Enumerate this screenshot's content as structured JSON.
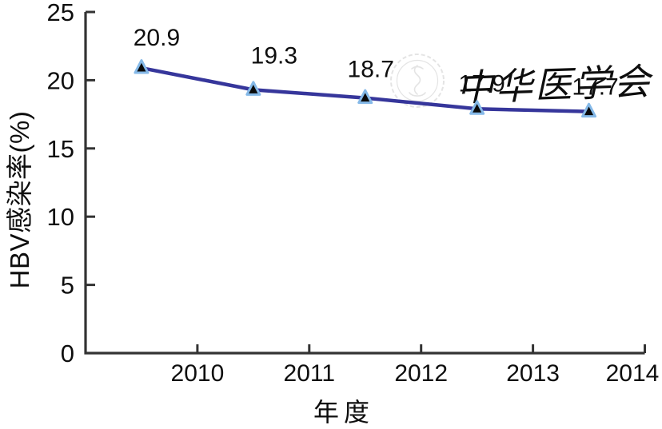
{
  "chart_data": {
    "type": "line",
    "title": "",
    "xlabel": "年度",
    "ylabel": "HBV感染率(%)",
    "x": [
      2009.5,
      2010.5,
      2011.5,
      2012.5,
      2013.5
    ],
    "values": [
      20.9,
      19.3,
      18.7,
      17.9,
      17.7
    ],
    "point_labels": [
      "20.9",
      "19.3",
      "18.7",
      "17.9",
      "17.7"
    ],
    "x_ticks": [
      "2010",
      "2011",
      "2012",
      "2013",
      "2014"
    ],
    "y_ticks": [
      "0",
      "5",
      "10",
      "15",
      "20",
      "25"
    ],
    "xlim": [
      2009,
      2014
    ],
    "ylim": [
      0,
      25
    ],
    "grid": false,
    "legend": false,
    "marker": "triangle-up",
    "colors": {
      "line": "#2e2e97",
      "marker_fill": "#0a0a0a",
      "marker_halo": "#85b9e8",
      "axis": "#333333",
      "text": "#0e0e0e",
      "watermark": "#e4e4e4"
    },
    "watermark": {
      "seal": "chinese-medical-association-seal",
      "text": "中华医学会"
    }
  }
}
